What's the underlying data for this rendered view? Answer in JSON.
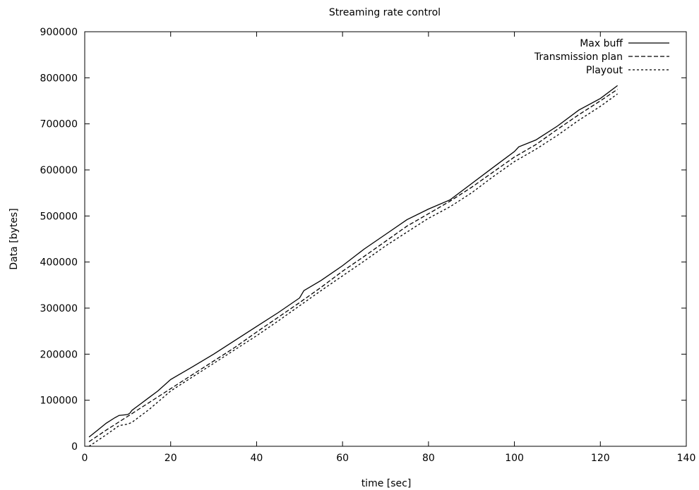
{
  "chart_data": {
    "type": "line",
    "title": "Streaming rate control",
    "xlabel": "time [sec]",
    "ylabel": "Data [bytes]",
    "xlim": [
      0,
      140
    ],
    "ylim": [
      0,
      900000
    ],
    "x_ticks": [
      "0",
      "20",
      "40",
      "60",
      "80",
      "100",
      "120",
      "140"
    ],
    "y_ticks": [
      "0",
      "100000",
      "200000",
      "300000",
      "400000",
      "500000",
      "600000",
      "700000",
      "800000",
      "900000"
    ],
    "grid": false,
    "legend_position": "top-right",
    "series": [
      {
        "name": "Max buff",
        "dash": "solid",
        "x": [
          1,
          3,
          5,
          7,
          8,
          9,
          10,
          10.5,
          11,
          13,
          15,
          17,
          20,
          25,
          30,
          35,
          40,
          45,
          50,
          51,
          55,
          60,
          65,
          70,
          75,
          80,
          85,
          90,
          95,
          100,
          101,
          105,
          110,
          115,
          120,
          124
        ],
        "y": [
          20000,
          35000,
          50000,
          62000,
          67000,
          68000,
          69000,
          72000,
          78000,
          92000,
          106000,
          120000,
          145000,
          172000,
          200000,
          230000,
          260000,
          290000,
          322000,
          338000,
          360000,
          392000,
          428000,
          460000,
          492000,
          515000,
          535000,
          570000,
          605000,
          640000,
          650000,
          665000,
          695000,
          730000,
          755000,
          783000
        ]
      },
      {
        "name": "Transmission plan",
        "dash": "dashed",
        "x": [
          1,
          5,
          10,
          15,
          20,
          25,
          30,
          35,
          40,
          45,
          50,
          55,
          60,
          65,
          70,
          75,
          80,
          85,
          90,
          95,
          100,
          105,
          110,
          115,
          120,
          124
        ],
        "y": [
          10000,
          35000,
          65000,
          95000,
          125000,
          155000,
          185000,
          215000,
          248000,
          280000,
          312000,
          345000,
          380000,
          412000,
          445000,
          478000,
          505000,
          532000,
          562000,
          595000,
          628000,
          655000,
          688000,
          720000,
          750000,
          775000
        ]
      },
      {
        "name": "Playout",
        "dash": "dotted",
        "x": [
          1,
          5,
          8,
          10,
          11,
          15,
          20,
          25,
          30,
          35,
          40,
          45,
          50,
          55,
          60,
          65,
          70,
          75,
          80,
          85,
          90,
          95,
          100,
          105,
          110,
          115,
          120,
          124
        ],
        "y": [
          0,
          25000,
          45000,
          48000,
          52000,
          80000,
          120000,
          150000,
          180000,
          210000,
          240000,
          272000,
          305000,
          338000,
          370000,
          402000,
          435000,
          465000,
          495000,
          520000,
          550000,
          585000,
          618000,
          645000,
          675000,
          708000,
          738000,
          765000
        ]
      }
    ]
  }
}
